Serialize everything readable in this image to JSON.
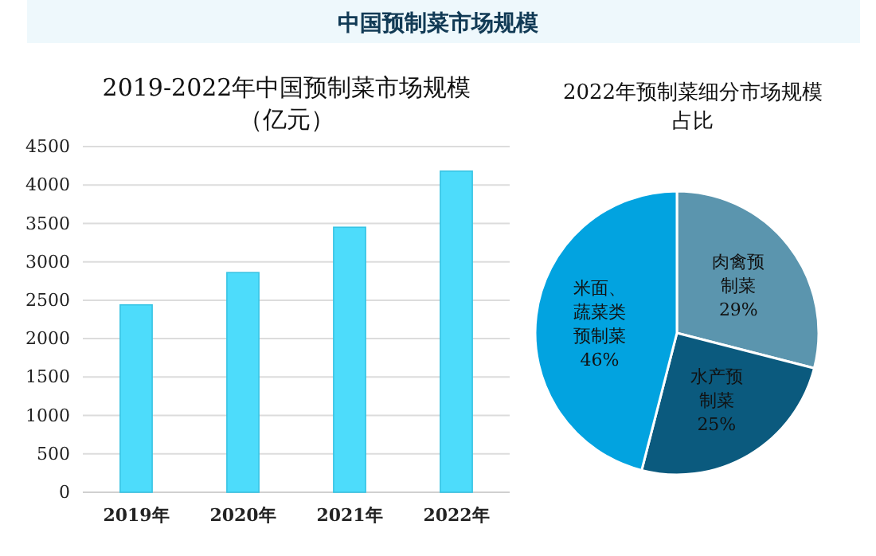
{
  "chart_data": [
    {
      "type": "bar",
      "title": "2019-2022年中国预制菜市场规模（亿元）",
      "annotations": [
        "中国预制菜市场规模"
      ],
      "categories": [
        "2019年",
        "2020年",
        "2021年",
        "2022年"
      ],
      "values": [
        2440,
        2860,
        3450,
        4180
      ],
      "color": "#4ddcfb",
      "ylim": [
        0,
        4500
      ],
      "yticks": [
        0,
        500,
        1000,
        1500,
        2000,
        2500,
        3000,
        3500,
        4000,
        4500
      ],
      "grid": "y"
    },
    {
      "type": "pie",
      "title": "2022年预制菜细分市场规模占比",
      "categories": [
        "肉禽预制菜",
        "水产预制菜",
        "米面、蔬菜类预制菜"
      ],
      "values": [
        29,
        25,
        46
      ],
      "colors": [
        "#5b95ae",
        "#0b5a7e",
        "#02a3e0"
      ],
      "value_labels": [
        "29%",
        "25%",
        "46%"
      ]
    }
  ]
}
